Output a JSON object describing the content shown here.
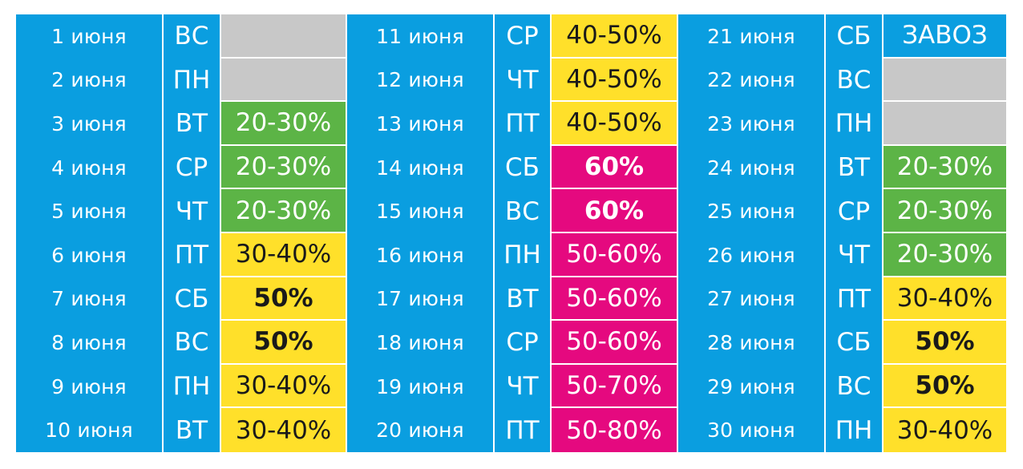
{
  "colors": {
    "blue": "#0a9ee0",
    "gray": "#c8c8c8",
    "green": "#5cb446",
    "yellow": "#ffe02a",
    "magenta": "#e5097f",
    "white": "#ffffff",
    "dark_text": "#1a1a1a"
  },
  "groups": [
    {
      "rows": [
        {
          "date": "1 июня",
          "day": "ВС",
          "discount": "",
          "color": "gray"
        },
        {
          "date": "2 июня",
          "day": "ПН",
          "discount": "",
          "color": "gray"
        },
        {
          "date": "3 июня",
          "day": "ВТ",
          "discount": "20-30%",
          "color": "green"
        },
        {
          "date": "4 июня",
          "day": "СР",
          "discount": "20-30%",
          "color": "green"
        },
        {
          "date": "5 июня",
          "day": "ЧТ",
          "discount": "20-30%",
          "color": "green"
        },
        {
          "date": "6 июня",
          "day": "ПТ",
          "discount": "30-40%",
          "color": "yellow"
        },
        {
          "date": "7 июня",
          "day": "СБ",
          "discount": "50%",
          "color": "yellow",
          "bold": true
        },
        {
          "date": "8 июня",
          "day": "ВС",
          "discount": "50%",
          "color": "yellow",
          "bold": true
        },
        {
          "date": "9 июня",
          "day": "ПН",
          "discount": "30-40%",
          "color": "yellow"
        },
        {
          "date": "10 июня",
          "day": "ВТ",
          "discount": "30-40%",
          "color": "yellow"
        }
      ]
    },
    {
      "rows": [
        {
          "date": "11 июня",
          "day": "СР",
          "discount": "40-50%",
          "color": "yellow"
        },
        {
          "date": "12 июня",
          "day": "ЧТ",
          "discount": "40-50%",
          "color": "yellow"
        },
        {
          "date": "13 июня",
          "day": "ПТ",
          "discount": "40-50%",
          "color": "yellow"
        },
        {
          "date": "14 июня",
          "day": "СБ",
          "discount": "60%",
          "color": "magenta",
          "bold": true
        },
        {
          "date": "15 июня",
          "day": "ВС",
          "discount": "60%",
          "color": "magenta",
          "bold": true
        },
        {
          "date": "16 июня",
          "day": "ПН",
          "discount": "50-60%",
          "color": "magenta"
        },
        {
          "date": "17 июня",
          "day": "ВТ",
          "discount": "50-60%",
          "color": "magenta"
        },
        {
          "date": "18 июня",
          "day": "СР",
          "discount": "50-60%",
          "color": "magenta"
        },
        {
          "date": "19 июня",
          "day": "ЧТ",
          "discount": "50-70%",
          "color": "magenta"
        },
        {
          "date": "20 июня",
          "day": "ПТ",
          "discount": "50-80%",
          "color": "magenta"
        }
      ]
    },
    {
      "rows": [
        {
          "date": "21 июня",
          "day": "СБ",
          "discount": "ЗАВОЗ",
          "color": "blue"
        },
        {
          "date": "22 июня",
          "day": "ВС",
          "discount": "",
          "color": "gray"
        },
        {
          "date": "23 июня",
          "day": "ПН",
          "discount": "",
          "color": "gray"
        },
        {
          "date": "24 июня",
          "day": "ВТ",
          "discount": "20-30%",
          "color": "green"
        },
        {
          "date": "25 июня",
          "day": "СР",
          "discount": "20-30%",
          "color": "green"
        },
        {
          "date": "26 июня",
          "day": "ЧТ",
          "discount": "20-30%",
          "color": "green"
        },
        {
          "date": "27 июня",
          "day": "ПТ",
          "discount": "30-40%",
          "color": "yellow"
        },
        {
          "date": "28 июня",
          "day": "СБ",
          "discount": "50%",
          "color": "yellow",
          "bold": true
        },
        {
          "date": "29 июня",
          "day": "ВС",
          "discount": "50%",
          "color": "yellow",
          "bold": true
        },
        {
          "date": "30 июня",
          "day": "ПН",
          "discount": "30-40%",
          "color": "yellow"
        }
      ]
    }
  ]
}
